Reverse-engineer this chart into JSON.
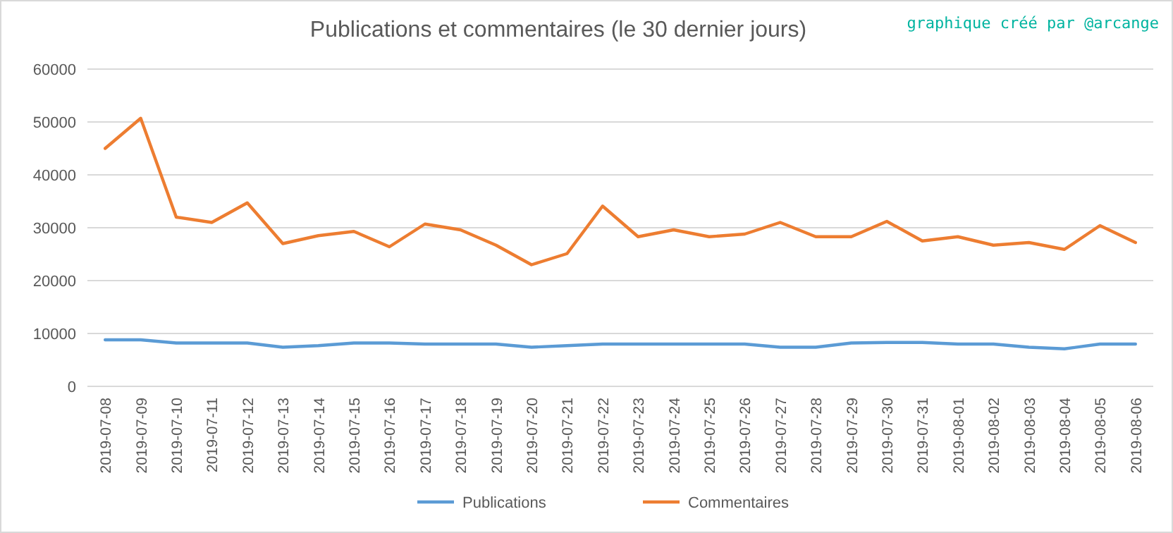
{
  "chart_data": {
    "type": "line",
    "title": "Publications et commentaires (le 30 dernier jours)",
    "annotations": [
      "graphique créé par @arcange"
    ],
    "categories": [
      "2019-07-08",
      "2019-07-09",
      "2019-07-10",
      "2019-07-11",
      "2019-07-12",
      "2019-07-13",
      "2019-07-14",
      "2019-07-15",
      "2019-07-16",
      "2019-07-17",
      "2019-07-18",
      "2019-07-19",
      "2019-07-20",
      "2019-07-21",
      "2019-07-22",
      "2019-07-23",
      "2019-07-24",
      "2019-07-25",
      "2019-07-26",
      "2019-07-27",
      "2019-07-28",
      "2019-07-29",
      "2019-07-30",
      "2019-07-31",
      "2019-08-01",
      "2019-08-02",
      "2019-08-03",
      "2019-08-04",
      "2019-08-05",
      "2019-08-06"
    ],
    "series": [
      {
        "name": "Publications",
        "color": "#5b9bd5",
        "values": [
          8800,
          8800,
          8200,
          8200,
          8200,
          7400,
          7700,
          8200,
          8200,
          8000,
          8000,
          8000,
          7400,
          7700,
          8000,
          8000,
          8000,
          8000,
          8000,
          7400,
          7400,
          8200,
          8300,
          8300,
          8000,
          8000,
          7400,
          7100,
          8000,
          8000
        ]
      },
      {
        "name": "Commentaires",
        "color": "#ed7d31",
        "values": [
          45000,
          50700,
          32000,
          31000,
          34700,
          27000,
          28500,
          29300,
          26400,
          30700,
          29600,
          26700,
          23000,
          25100,
          34100,
          28300,
          29600,
          28300,
          28800,
          31000,
          28300,
          28300,
          31200,
          27500,
          28300,
          26700,
          27200,
          25900,
          30400,
          27200
        ]
      }
    ],
    "ylim": [
      0,
      60000
    ],
    "yticks": [
      0,
      10000,
      20000,
      30000,
      40000,
      50000,
      60000
    ],
    "grid": "y",
    "legend": "bottom",
    "marker": "none",
    "line_style": "solid"
  }
}
